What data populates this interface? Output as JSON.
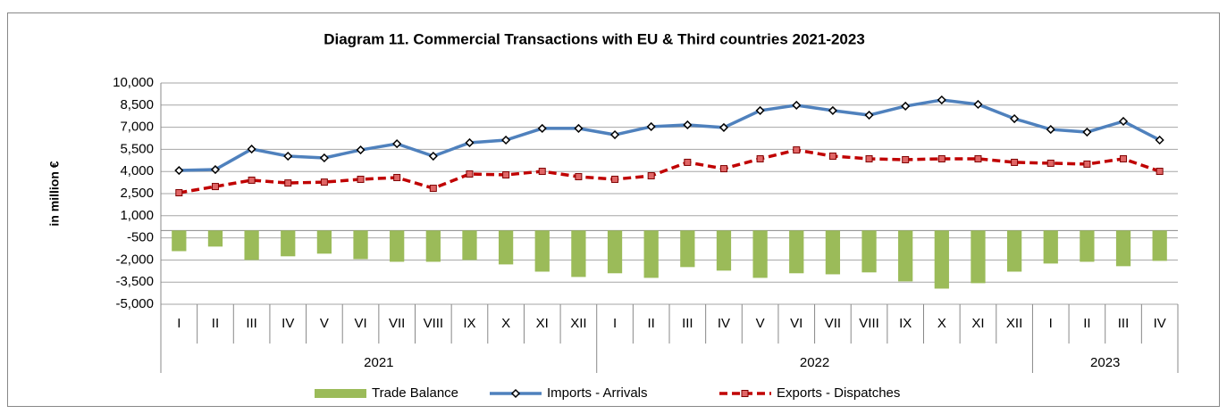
{
  "chart_data": {
    "type": "combo",
    "title": "Diagram 11. Commercial Transactions with EU & Third countries 2021-2023",
    "y_label": "in million €",
    "groups": [
      {
        "label": "2021",
        "categories": [
          "I",
          "II",
          "III",
          "IV",
          "V",
          "VI",
          "VII",
          "VIII",
          "IX",
          "X",
          "XI",
          "XII"
        ]
      },
      {
        "label": "2022",
        "categories": [
          "I",
          "II",
          "III",
          "IV",
          "V",
          "VI",
          "VII",
          "VIII",
          "IX",
          "X",
          "XI",
          "XII"
        ]
      },
      {
        "label": "2023",
        "categories": [
          "I",
          "II",
          "III",
          "IV"
        ]
      }
    ],
    "series": [
      {
        "name": "Trade Balance",
        "kind": "bar",
        "color": "#9bbb59",
        "values": [
          -1400,
          -1090,
          -2000,
          -1750,
          -1570,
          -1940,
          -2120,
          -2120,
          -2000,
          -2300,
          -2790,
          -3150,
          -2900,
          -3210,
          -2480,
          -2720,
          -3210,
          -2900,
          -2970,
          -2840,
          -3450,
          -3940,
          -3570,
          -2790,
          -2240,
          -2120,
          -2420,
          -2060
        ]
      },
      {
        "name": "Imports - Arrivals",
        "kind": "line",
        "color": "#4f81bd",
        "values": [
          4070,
          4130,
          5520,
          5040,
          4920,
          5460,
          5880,
          5040,
          5950,
          6130,
          6920,
          6920,
          6490,
          7040,
          7160,
          6980,
          8130,
          8490,
          8130,
          7820,
          8430,
          8850,
          8550,
          7580,
          6850,
          6670,
          7400,
          6130
        ]
      },
      {
        "name": "Exports - Dispatches",
        "kind": "dashed",
        "color": "#c00000",
        "values": [
          2560,
          2980,
          3410,
          3220,
          3280,
          3470,
          3590,
          2860,
          3830,
          3770,
          4010,
          3650,
          3470,
          3710,
          4620,
          4190,
          4860,
          5460,
          5040,
          4860,
          4800,
          4860,
          4860,
          4620,
          4560,
          4500,
          4860,
          4010
        ]
      }
    ],
    "ylim": [
      -5000,
      10000
    ],
    "yticks": [
      {
        "value": -5000,
        "label": "-5,000"
      },
      {
        "value": -3500,
        "label": "-3,500"
      },
      {
        "value": -2000,
        "label": "-2,000"
      },
      -500,
      {
        "value": 1000,
        "label": "1,000"
      },
      {
        "value": 2500,
        "label": "2,500"
      },
      {
        "value": 4000,
        "label": "4,000"
      },
      {
        "value": 5500,
        "label": "5,500"
      },
      {
        "value": 7000,
        "label": "7,000"
      },
      {
        "value": 8500,
        "label": "8,500"
      },
      {
        "value": 10000,
        "label": "10,000"
      }
    ],
    "grid": true
  }
}
